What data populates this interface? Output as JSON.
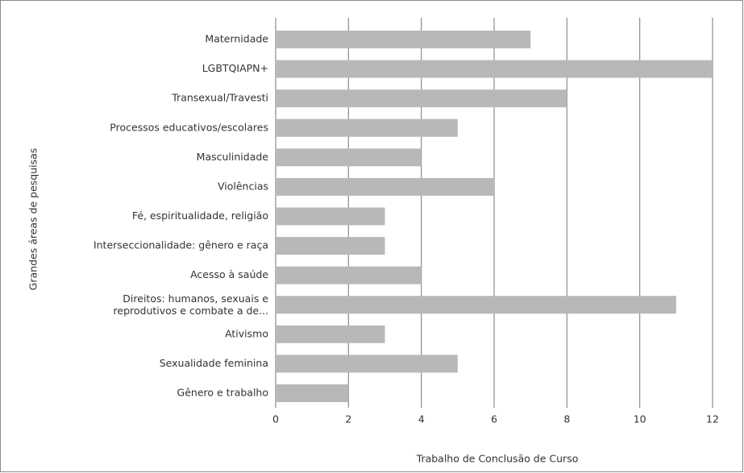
{
  "chart_data": {
    "type": "bar",
    "orientation": "horizontal",
    "categories": [
      "Maternidade",
      "LGBTQIAPN+",
      "Transexual/Travesti",
      "Processos educativos/escolares",
      "Masculinidade",
      "Violências",
      "Fé, espiritualidade, religião",
      "Interseccionalidade: gênero e raça",
      "Acesso à saúde",
      "Direitos: humanos, sexuais e\nreprodutivos e combate a de...",
      "Ativismo",
      "Sexualidade feminina",
      "Gênero e trabalho"
    ],
    "values": [
      7,
      12,
      8,
      5,
      4,
      6,
      3,
      3,
      4,
      11,
      3,
      5,
      2
    ],
    "color": "#b8b8b8",
    "x_label": "Trabalho de Conclusão de Curso",
    "y_label": "Grandes áreas de pesquisas",
    "xlim": [
      0,
      12
    ],
    "xticks": [
      0,
      2,
      4,
      6,
      8,
      10,
      12
    ],
    "grid": true
  }
}
